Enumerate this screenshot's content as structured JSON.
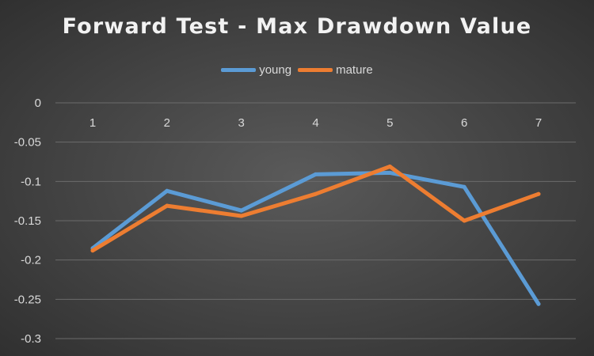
{
  "chart_data": {
    "type": "line",
    "title": "Forward Test - Max Drawdown Value",
    "xlabel": "",
    "ylabel": "",
    "categories": [
      "1",
      "2",
      "3",
      "4",
      "5",
      "6",
      "7"
    ],
    "ylim": [
      -0.3,
      0
    ],
    "yticks": [
      "0",
      "-0.05",
      "-0.1",
      "-0.15",
      "-0.2",
      "-0.25",
      "-0.3"
    ],
    "grid": true,
    "legend_position": "top",
    "series": [
      {
        "name": "young",
        "color": "#5b9bd5",
        "values": [
          -0.185,
          -0.112,
          -0.137,
          -0.091,
          -0.089,
          -0.107,
          -0.256
        ]
      },
      {
        "name": "mature",
        "color": "#ed7d31",
        "values": [
          -0.188,
          -0.131,
          -0.144,
          -0.116,
          -0.081,
          -0.15,
          -0.116
        ]
      }
    ]
  }
}
